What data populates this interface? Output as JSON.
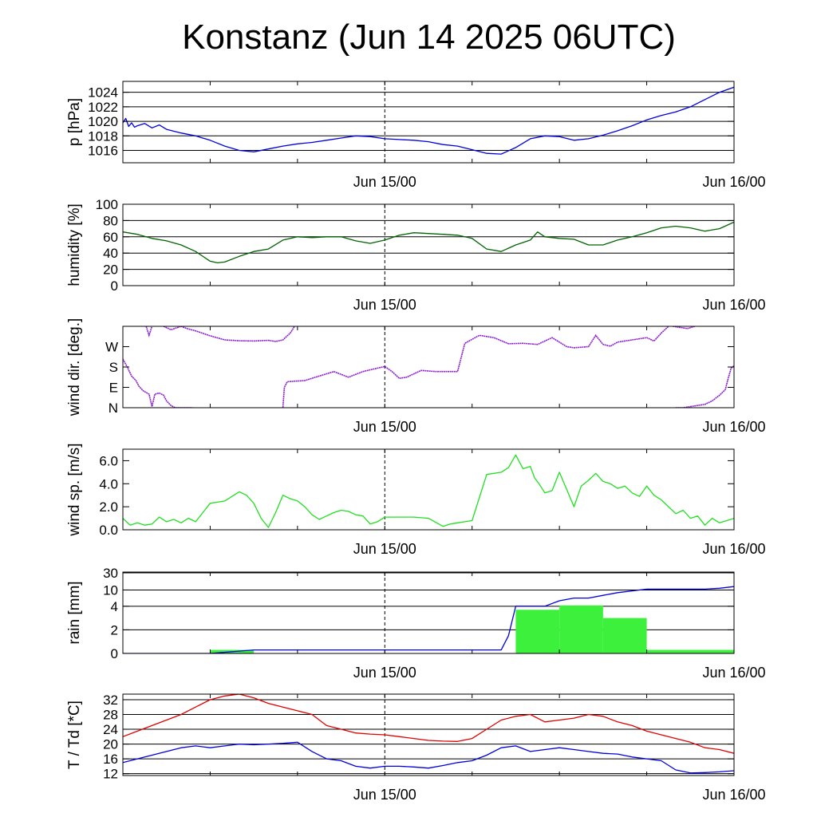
{
  "title": "Konstanz (Jun 14 2025 06UTC)",
  "time_axis": {
    "start": "2025-06-14 06:00",
    "end": "2025-06-16 00:00",
    "tick_labels": [
      "Jun 15/00",
      "Jun 16/00"
    ],
    "tick_label_times_h": [
      18,
      42
    ],
    "minor_ticks_h": [
      0,
      6,
      12,
      18,
      24,
      30,
      36,
      42
    ],
    "dashed_marker_h": 18
  },
  "chart_data": [
    {
      "id": "pressure",
      "type": "line",
      "ylabel": "p [hPa]",
      "ylim": [
        1014.3,
        1025.5
      ],
      "yticks": [
        1016,
        1018,
        1020,
        1022,
        1024
      ],
      "ytick_labels": [
        "1016",
        "1018",
        "1020",
        "1022",
        "1024"
      ],
      "grid": true,
      "series": [
        {
          "color": "#0000e0",
          "x": [
            0,
            0.2,
            0.4,
            0.6,
            0.8,
            1,
            1.5,
            2,
            2.5,
            3,
            4,
            5,
            6,
            7,
            8,
            9,
            10,
            11,
            12,
            13,
            14,
            15,
            16,
            17,
            18,
            19,
            20,
            21,
            22,
            23,
            24,
            25,
            26,
            27,
            28,
            29,
            30,
            31,
            32,
            33,
            34,
            35,
            36,
            37,
            38,
            39,
            40,
            41,
            42
          ],
          "y": [
            1019.8,
            1020.4,
            1019.3,
            1019.8,
            1019.2,
            1019.4,
            1019.7,
            1019.1,
            1019.5,
            1018.9,
            1018.4,
            1018.0,
            1017.4,
            1016.6,
            1016.0,
            1015.8,
            1016.2,
            1016.6,
            1016.9,
            1017.1,
            1017.4,
            1017.7,
            1018.0,
            1017.9,
            1017.6,
            1017.5,
            1017.4,
            1017.2,
            1016.8,
            1016.6,
            1016.1,
            1015.6,
            1015.5,
            1016.4,
            1017.6,
            1018.0,
            1017.9,
            1017.4,
            1017.6,
            1018.1,
            1018.7,
            1019.4,
            1020.2,
            1020.8,
            1021.3,
            1022.0,
            1023.0,
            1024.0,
            1024.7
          ]
        }
      ]
    },
    {
      "id": "humidity",
      "type": "line",
      "ylabel": "humidity [%]",
      "ylim": [
        0,
        100
      ],
      "yticks": [
        0,
        20,
        40,
        60,
        80,
        100
      ],
      "ytick_labels": [
        "0",
        "20",
        "40",
        "60",
        "80",
        "100"
      ],
      "grid": true,
      "series": [
        {
          "color": "#006400",
          "x": [
            0,
            1,
            2,
            3,
            4,
            5,
            6,
            6.5,
            7,
            8,
            9,
            10,
            11,
            12,
            13,
            14,
            15,
            16,
            17,
            18,
            19,
            20,
            21,
            22,
            23,
            24,
            25,
            26,
            27,
            28,
            28.5,
            29,
            30,
            31,
            32,
            33,
            34,
            35,
            36,
            37,
            38,
            39,
            40,
            41,
            42
          ],
          "y": [
            66,
            63,
            58,
            55,
            50,
            42,
            30,
            28,
            29,
            36,
            42,
            45,
            56,
            60,
            59,
            60,
            60,
            55,
            52,
            56,
            62,
            65,
            64,
            63,
            62,
            58,
            45,
            42,
            50,
            56,
            66,
            60,
            58,
            57,
            50,
            50,
            56,
            60,
            65,
            71,
            73,
            71,
            67,
            70,
            78
          ]
        }
      ]
    },
    {
      "id": "wind_direction",
      "type": "scatter",
      "ylabel": "wind dir. [deg.]",
      "ylim": [
        0,
        360
      ],
      "yticks": [
        0,
        90,
        180,
        270
      ],
      "ytick_labels": [
        "N",
        "E",
        "S",
        "W"
      ],
      "grid": false,
      "series": [
        {
          "color": "#8c20d0",
          "segments": [
            [
              [
                0,
                215
              ],
              [
                0.3,
                180
              ],
              [
                0.6,
                140
              ],
              [
                0.9,
                120
              ],
              [
                1.1,
                95
              ],
              [
                1.4,
                75
              ],
              [
                1.8,
                60
              ],
              [
                2.0,
                5
              ],
              [
                2.2,
                60
              ],
              [
                2.5,
                65
              ],
              [
                2.8,
                55
              ],
              [
                3.0,
                30
              ],
              [
                3.3,
                10
              ],
              [
                3.6,
                0
              ],
              [
                4.2,
                0
              ],
              [
                4.8,
                0
              ]
            ],
            [
              [
                1.6,
                360
              ],
              [
                1.8,
                320
              ],
              [
                2.0,
                360
              ]
            ],
            [
              [
                2.8,
                360
              ],
              [
                3.3,
                345
              ],
              [
                4.0,
                360
              ],
              [
                4.4,
                350
              ],
              [
                5.0,
                340
              ],
              [
                6.0,
                318
              ],
              [
                7.0,
                300
              ],
              [
                8.0,
                296
              ],
              [
                9.0,
                295
              ],
              [
                10.0,
                298
              ],
              [
                10.5,
                293
              ],
              [
                11.0,
                300
              ],
              [
                11.5,
                330
              ],
              [
                11.8,
                360
              ]
            ],
            [
              [
                11.0,
                0
              ],
              [
                11.1,
                90
              ],
              [
                11.3,
                115
              ],
              [
                12.5,
                120
              ],
              [
                13.5,
                140
              ],
              [
                14.5,
                160
              ],
              [
                15.5,
                135
              ],
              [
                16.5,
                160
              ],
              [
                17.5,
                175
              ],
              [
                18.0,
                182
              ],
              [
                18.5,
                160
              ],
              [
                19.0,
                130
              ],
              [
                19.5,
                135
              ],
              [
                20.5,
                165
              ],
              [
                21.5,
                160
              ],
              [
                22.5,
                160
              ],
              [
                23.0,
                160
              ],
              [
                23.5,
                285
              ],
              [
                24.5,
                320
              ],
              [
                25.5,
                310
              ],
              [
                26.5,
                283
              ],
              [
                27.5,
                285
              ],
              [
                28.5,
                280
              ],
              [
                29.5,
                310
              ],
              [
                30.5,
                270
              ],
              [
                31.0,
                265
              ],
              [
                32.0,
                270
              ],
              [
                32.5,
                320
              ],
              [
                33.0,
                280
              ],
              [
                33.5,
                272
              ],
              [
                34.0,
                290
              ],
              [
                35.0,
                300
              ],
              [
                36.0,
                310
              ],
              [
                36.5,
                295
              ],
              [
                37.0,
                330
              ],
              [
                37.5,
                360
              ]
            ],
            [
              [
                37.8,
                360
              ],
              [
                38.3,
                355
              ],
              [
                38.8,
                350
              ],
              [
                39.3,
                360
              ]
            ],
            [
              [
                38.0,
                0
              ],
              [
                38.5,
                0
              ],
              [
                39.5,
                10
              ],
              [
                40.0,
                15
              ],
              [
                40.5,
                30
              ],
              [
                41.0,
                55
              ],
              [
                41.4,
                80
              ],
              [
                41.6,
                130
              ],
              [
                41.8,
                175
              ],
              [
                42.0,
                185
              ]
            ]
          ]
        }
      ]
    },
    {
      "id": "wind_speed",
      "type": "line",
      "ylabel": "wind sp. [m/s]",
      "ylim": [
        0,
        7.0
      ],
      "yticks": [
        0,
        2,
        4,
        6
      ],
      "ytick_labels": [
        "0.0",
        "2.0",
        "4.0",
        "6.0"
      ],
      "grid": false,
      "series": [
        {
          "color": "#20e020",
          "x": [
            0,
            0.5,
            1,
            1.5,
            2,
            2.5,
            3,
            3.5,
            4,
            4.5,
            5,
            5.5,
            6,
            6.5,
            7,
            7.5,
            8,
            8.5,
            9,
            9.5,
            10,
            10.5,
            11,
            11.5,
            12,
            12.5,
            13,
            13.5,
            14,
            14.5,
            15,
            15.5,
            16,
            16.5,
            17,
            17.5,
            18,
            18.5,
            19,
            20,
            21,
            22,
            22.5,
            23,
            23.5,
            24,
            25,
            26,
            26.5,
            27,
            27.5,
            28,
            28.3,
            28.6,
            29,
            29.5,
            30,
            30.5,
            31,
            31.5,
            32,
            32.5,
            33,
            33.5,
            34,
            34.5,
            35,
            35.5,
            36,
            36.5,
            37,
            37.5,
            38,
            38.5,
            39,
            39.5,
            40,
            40.5,
            41,
            41.5,
            42
          ],
          "y": [
            1.0,
            0.4,
            0.6,
            0.4,
            0.5,
            1.1,
            0.7,
            0.9,
            0.6,
            1.0,
            0.7,
            1.5,
            2.3,
            2.4,
            2.5,
            2.9,
            3.3,
            3.0,
            2.3,
            1.0,
            0.2,
            1.5,
            3.0,
            2.7,
            2.5,
            2.0,
            1.3,
            0.9,
            1.2,
            1.5,
            1.7,
            1.6,
            1.3,
            1.2,
            0.5,
            0.7,
            1.1,
            1.1,
            1.1,
            1.1,
            1.0,
            0.3,
            0.5,
            0.6,
            0.7,
            0.8,
            4.8,
            5.0,
            5.4,
            6.5,
            5.3,
            5.5,
            4.5,
            4.0,
            3.2,
            3.4,
            5.0,
            3.5,
            2.0,
            3.8,
            4.3,
            4.9,
            4.2,
            4.0,
            3.6,
            3.8,
            3.2,
            2.9,
            3.8,
            3.0,
            2.6,
            2.0,
            1.4,
            1.7,
            1.0,
            1.2,
            0.4,
            1.0,
            0.6,
            0.8,
            1.0
          ]
        }
      ]
    },
    {
      "id": "rain",
      "type": "bar",
      "ylabel": "rain [mm]",
      "yticks": [
        0,
        2,
        4,
        10,
        30
      ],
      "ytick_labels": [
        "0",
        "2",
        "4",
        "10",
        "30"
      ],
      "grid": true,
      "bar_color": "#3cf03c",
      "bars": [
        {
          "start_h": 6,
          "end_h": 9,
          "value": 0.3
        },
        {
          "start_h": 27,
          "end_h": 30,
          "value": 3.7
        },
        {
          "start_h": 30,
          "end_h": 33,
          "value": 4.3
        },
        {
          "start_h": 33,
          "end_h": 36,
          "value": 3.0
        },
        {
          "start_h": 36,
          "end_h": 42,
          "value": 0.3
        }
      ],
      "series": [
        {
          "color": "#0000e0",
          "x": [
            0,
            6,
            9,
            10,
            18,
            26,
            26.5,
            27,
            28,
            29,
            30,
            31,
            32,
            33,
            34,
            36,
            38,
            40,
            41,
            42
          ],
          "y": [
            0,
            0,
            0.3,
            0.3,
            0.3,
            0.3,
            1.5,
            4.0,
            4.0,
            4.0,
            6,
            7,
            7,
            8,
            9,
            11,
            11,
            11,
            12,
            14
          ]
        }
      ]
    },
    {
      "id": "temperature",
      "type": "line",
      "ylabel": "T / Td [*C]",
      "ylim": [
        11.5,
        33.5
      ],
      "yticks": [
        12,
        16,
        20,
        24,
        28,
        32
      ],
      "ytick_labels": [
        "12",
        "16",
        "20",
        "24",
        "28",
        "32"
      ],
      "grid": true,
      "series": [
        {
          "color": "#e00000",
          "x": [
            0,
            1,
            2,
            3,
            4,
            5,
            6,
            7,
            8,
            9,
            10,
            11,
            12,
            13,
            14,
            15,
            16,
            17,
            18,
            19,
            20,
            21,
            22,
            23,
            24,
            25,
            26,
            27,
            28,
            29,
            30,
            31,
            32,
            33,
            34,
            35,
            36,
            37,
            38,
            39,
            40,
            41,
            42
          ],
          "y": [
            22,
            23.5,
            25,
            26.5,
            28,
            30,
            32,
            33,
            33.5,
            32.5,
            31,
            30,
            29,
            28,
            25,
            24,
            23,
            22.7,
            22.5,
            22,
            21.5,
            21,
            20.8,
            20.7,
            21.5,
            24,
            26.5,
            27.5,
            28,
            26,
            26.5,
            27,
            28,
            27.5,
            26,
            25,
            23.5,
            22.5,
            21.5,
            20.5,
            19,
            18.5,
            17.5
          ]
        },
        {
          "color": "#0000e0",
          "x": [
            0,
            1,
            2,
            3,
            4,
            5,
            6,
            7,
            8,
            9,
            10,
            11,
            12,
            13,
            14,
            15,
            16,
            17,
            18,
            19,
            20,
            21,
            22,
            23,
            24,
            25,
            26,
            27,
            28,
            29,
            30,
            31,
            32,
            33,
            34,
            35,
            36,
            37,
            38,
            39,
            40,
            41,
            42
          ],
          "y": [
            15,
            16,
            17,
            18,
            19,
            19.5,
            19,
            19.5,
            20,
            19.8,
            20,
            20.2,
            20.5,
            18,
            16,
            15.5,
            14,
            13.5,
            14,
            14,
            13.8,
            13.5,
            14.2,
            15,
            15.5,
            17,
            19,
            19.5,
            18,
            18.5,
            19,
            18.5,
            18,
            17.5,
            17.3,
            16.5,
            16,
            15.5,
            13,
            12.2,
            12.3,
            12.5,
            12.8
          ]
        }
      ]
    }
  ]
}
